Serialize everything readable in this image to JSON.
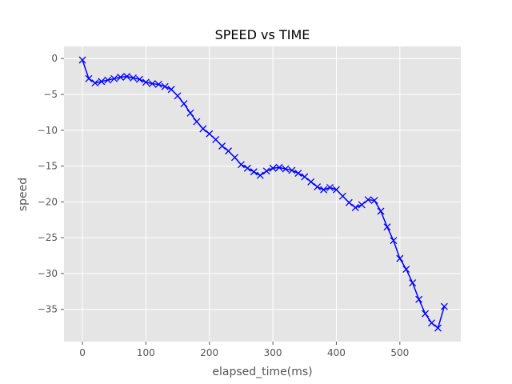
{
  "colors": {
    "plot_background": "#e5e5e5",
    "grid": "#ffffff",
    "series": "#0000ff",
    "tick_text": "#555555"
  },
  "chart_data": {
    "type": "line",
    "title": "SPEED vs TIME",
    "xlabel": "elapsed_time(ms)",
    "ylabel": "speed",
    "xlim": [
      -29,
      596
    ],
    "ylim": [
      -39.5,
      1.7
    ],
    "xticks": [
      0,
      100,
      200,
      300,
      400,
      500
    ],
    "yticks": [
      0,
      -5,
      -10,
      -15,
      -20,
      -25,
      -30,
      -35
    ],
    "grid": true,
    "marker": "x",
    "series": [
      {
        "x": [
          0,
          10,
          20,
          30,
          40,
          50,
          60,
          70,
          80,
          90,
          100,
          110,
          120,
          130,
          140,
          150,
          160,
          170,
          180,
          190,
          200,
          210,
          220,
          230,
          240,
          250,
          260,
          270,
          280,
          290,
          300,
          310,
          320,
          330,
          340,
          350,
          360,
          370,
          380,
          390,
          400,
          410,
          420,
          430,
          440,
          450,
          460,
          470,
          480,
          490,
          500,
          510,
          520,
          530,
          540,
          550,
          560,
          570
        ],
        "y": [
          -0.2,
          -2.8,
          -3.4,
          -3.2,
          -3.0,
          -2.8,
          -2.6,
          -2.5,
          -2.7,
          -2.9,
          -3.3,
          -3.5,
          -3.6,
          -3.9,
          -4.3,
          -5.2,
          -6.3,
          -7.6,
          -8.8,
          -9.8,
          -10.5,
          -11.3,
          -12.2,
          -12.9,
          -13.8,
          -14.8,
          -15.3,
          -15.8,
          -16.3,
          -15.7,
          -15.3,
          -15.2,
          -15.4,
          -15.6,
          -16.0,
          -16.5,
          -17.2,
          -17.9,
          -18.3,
          -18.0,
          -18.3,
          -19.2,
          -20.1,
          -20.8,
          -20.4,
          -19.7,
          -19.8,
          -21.3,
          -23.5,
          -25.4,
          -27.9,
          -29.4,
          -31.3,
          -33.6,
          -35.6,
          -36.9,
          -37.6,
          -34.6
        ]
      }
    ]
  }
}
